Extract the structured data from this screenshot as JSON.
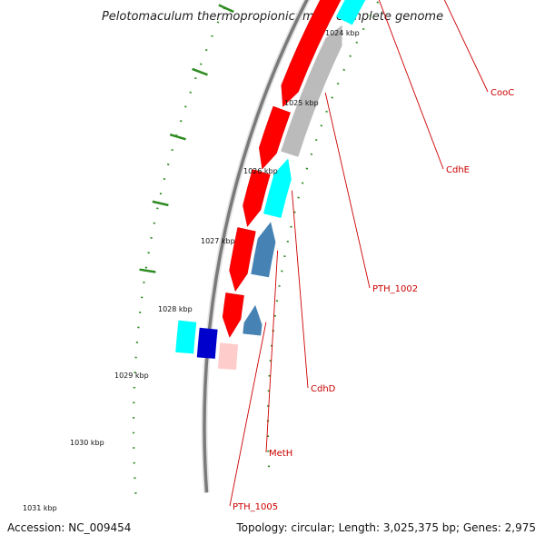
{
  "title": "Pelotomaculum thermopropionicum SI, complete genome",
  "ticks": [
    "1024 kbp",
    "1025 kbp",
    "1026 kbp",
    "1027 kbp",
    "1028 kbp",
    "1029 kbp",
    "1030 kbp",
    "1031 kbp"
  ],
  "genes": [
    "CooC",
    "CdhE",
    "PTH_1002",
    "CdhD",
    "MetH",
    "PTH_1005"
  ],
  "footer": {
    "accession": "Accession: NC_009454",
    "topology": "Topology: circular; Length: 3,025,375 bp; Genes: 2,975"
  },
  "colors": {
    "forward_strand": "#ff0000",
    "cooC": "#f2e6a0",
    "cdh": "#00ffff",
    "hypothetical": "#bbbbbb",
    "metH_pth1005": "#4682b4",
    "dark_blue": "#0000cc",
    "label_red": "#cc0000",
    "dot_green": "#2e8b22"
  }
}
